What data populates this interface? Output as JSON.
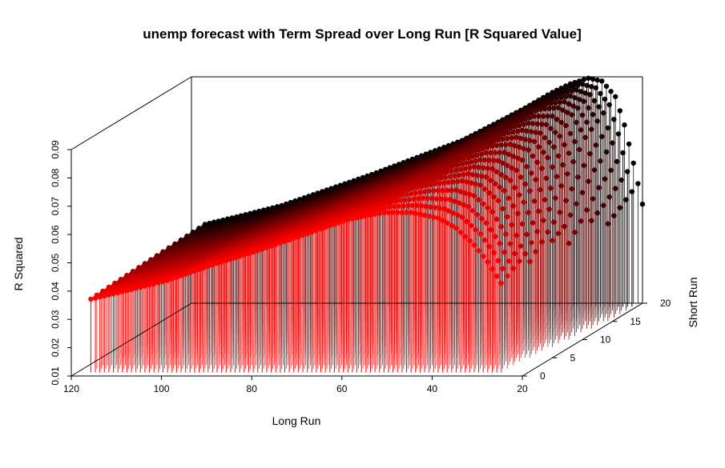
{
  "chart_data": {
    "type": "scatter3d",
    "title": "unemp forecast with Term Spread over Long Run [R Squared Value]",
    "xlabel": "Long Run",
    "ylabel": "Short Run",
    "zlabel": "R Squared",
    "xlim": [
      20,
      120
    ],
    "ylim": [
      0,
      20
    ],
    "zlim": [
      0.01,
      0.09
    ],
    "x_ticks": [
      "120",
      "100",
      "80",
      "60",
      "40",
      "20"
    ],
    "y_ticks": [
      "0",
      "5",
      "10",
      "15",
      "20"
    ],
    "z_ticks": [
      "0.01",
      "0.02",
      "0.03",
      "0.04",
      "0.05",
      "0.06",
      "0.07",
      "0.08",
      "0.09"
    ],
    "vertical_drop_lines": true,
    "color_gradient": {
      "axis": "Short Run",
      "from": "#ff0000",
      "to": "#000000"
    },
    "box": true,
    "grid": false,
    "series": [
      {
        "short_run": 1,
        "points": [
          [
            118,
            0.0355
          ],
          [
            110,
            0.0385
          ],
          [
            100,
            0.0425
          ],
          [
            90,
            0.048
          ],
          [
            80,
            0.053
          ],
          [
            70,
            0.0585
          ],
          [
            60,
            0.064
          ],
          [
            52,
            0.0665
          ],
          [
            46,
            0.0665
          ],
          [
            40,
            0.0645
          ],
          [
            36,
            0.061
          ],
          [
            32,
            0.055
          ],
          [
            29,
            0.049
          ],
          [
            27,
            0.044
          ],
          [
            26,
            0.0415
          ]
        ]
      },
      {
        "short_run": 5,
        "points": [
          [
            118,
            0.036
          ],
          [
            110,
            0.039
          ],
          [
            100,
            0.043
          ],
          [
            90,
            0.0485
          ],
          [
            80,
            0.054
          ],
          [
            70,
            0.0595
          ],
          [
            60,
            0.065
          ],
          [
            52,
            0.0695
          ],
          [
            46,
            0.0715
          ],
          [
            40,
            0.0725
          ],
          [
            36,
            0.071
          ],
          [
            32,
            0.0655
          ],
          [
            29,
            0.057
          ],
          [
            27,
            0.0495
          ],
          [
            25,
            0.044
          ]
        ]
      },
      {
        "short_run": 10,
        "points": [
          [
            118,
            0.0365
          ],
          [
            110,
            0.0395
          ],
          [
            100,
            0.0435
          ],
          [
            90,
            0.049
          ],
          [
            80,
            0.0545
          ],
          [
            70,
            0.0605
          ],
          [
            60,
            0.066
          ],
          [
            52,
            0.0715
          ],
          [
            46,
            0.0755
          ],
          [
            40,
            0.0785
          ],
          [
            36,
            0.079
          ],
          [
            32,
            0.077
          ],
          [
            29,
            0.0705
          ],
          [
            26,
            0.06
          ],
          [
            24,
            0.05
          ],
          [
            23,
            0.044
          ]
        ]
      },
      {
        "short_run": 15,
        "points": [
          [
            118,
            0.037
          ],
          [
            110,
            0.04
          ],
          [
            100,
            0.044
          ],
          [
            90,
            0.0495
          ],
          [
            80,
            0.055
          ],
          [
            70,
            0.061
          ],
          [
            60,
            0.067
          ],
          [
            52,
            0.073
          ],
          [
            46,
            0.078
          ],
          [
            40,
            0.0825
          ],
          [
            36,
            0.085
          ],
          [
            32,
            0.0855
          ],
          [
            29,
            0.083
          ],
          [
            26,
            0.075
          ],
          [
            24,
            0.0635
          ],
          [
            22,
            0.051
          ],
          [
            21,
            0.0445
          ]
        ]
      },
      {
        "short_run": 20,
        "points": [
          [
            118,
            0.0375
          ],
          [
            110,
            0.0405
          ],
          [
            100,
            0.0445
          ],
          [
            90,
            0.05
          ],
          [
            80,
            0.0555
          ],
          [
            70,
            0.0615
          ],
          [
            60,
            0.0675
          ],
          [
            52,
            0.074
          ],
          [
            46,
            0.079
          ],
          [
            40,
            0.0845
          ],
          [
            36,
            0.0875
          ],
          [
            32,
            0.0895
          ],
          [
            29,
            0.0885
          ],
          [
            26,
            0.083
          ],
          [
            24,
            0.073
          ],
          [
            22,
            0.0595
          ],
          [
            20,
            0.045
          ]
        ]
      }
    ]
  }
}
